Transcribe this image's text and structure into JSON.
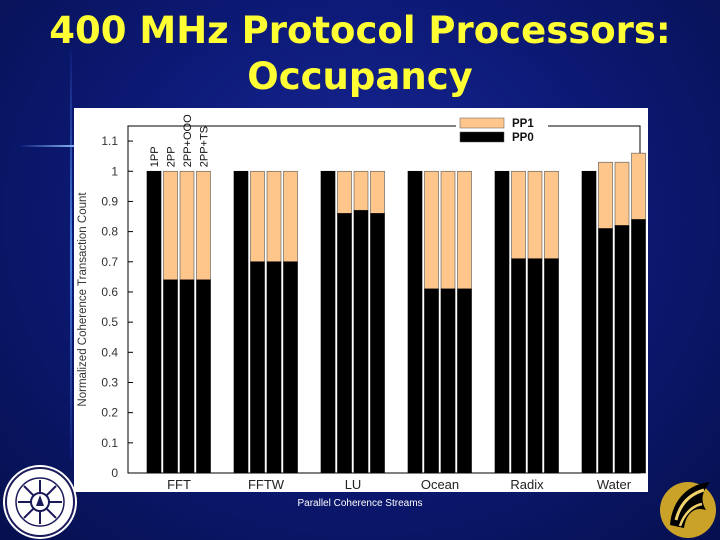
{
  "slide": {
    "title_line1": "400 MHz Protocol Processors:",
    "title_line2": "Occupancy",
    "footer": "Parallel Coherence Streams"
  },
  "colors": {
    "pp1": "#ffc68c",
    "pp0": "#000000",
    "title": "#ffff33",
    "background": "#0d1a78"
  },
  "chart_data": {
    "type": "bar",
    "stacked": true,
    "title": "",
    "xlabel": "",
    "ylabel": "Normalized Coherence Transaction Count",
    "ylim": [
      0,
      1.15
    ],
    "yticks": [
      0,
      0.1,
      0.2,
      0.3,
      0.4,
      0.5,
      0.6,
      0.7,
      0.8,
      0.9,
      1,
      1.1
    ],
    "categories": [
      "FFT",
      "FFTW",
      "LU",
      "Ocean",
      "Radix",
      "Water"
    ],
    "configurations": [
      "1PP",
      "2PP",
      "2PP+OOO",
      "2PP+TS"
    ],
    "legend": {
      "position": "top-right",
      "entries": [
        "PP1",
        "PP0"
      ]
    },
    "series": [
      {
        "name": "PP0",
        "values": [
          [
            1.0,
            0.64,
            0.64,
            0.64
          ],
          [
            1.0,
            0.7,
            0.7,
            0.7
          ],
          [
            1.0,
            0.86,
            0.87,
            0.86
          ],
          [
            1.0,
            0.61,
            0.61,
            0.61
          ],
          [
            1.0,
            0.71,
            0.71,
            0.71
          ],
          [
            1.0,
            0.81,
            0.82,
            0.84
          ]
        ]
      },
      {
        "name": "PP1",
        "values": [
          [
            0.0,
            0.36,
            0.36,
            0.36
          ],
          [
            0.0,
            0.3,
            0.3,
            0.3
          ],
          [
            0.0,
            0.14,
            0.13,
            0.14
          ],
          [
            0.0,
            0.39,
            0.39,
            0.39
          ],
          [
            0.0,
            0.29,
            0.29,
            0.29
          ],
          [
            0.0,
            0.22,
            0.21,
            0.22
          ]
        ]
      }
    ]
  }
}
